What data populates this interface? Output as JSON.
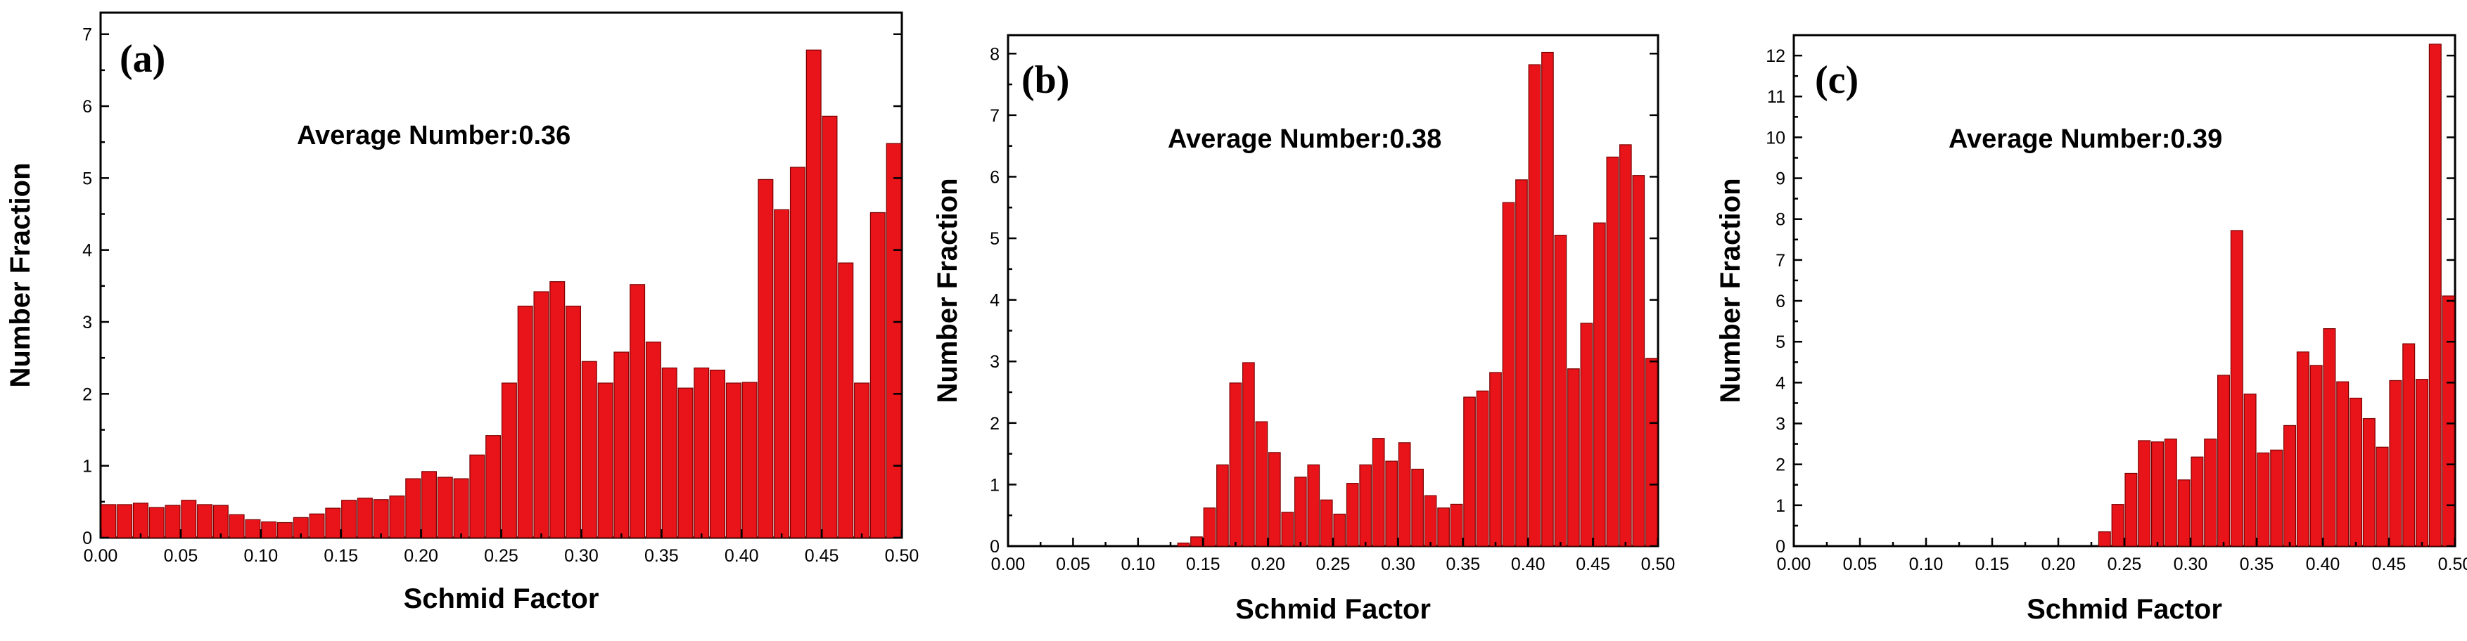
{
  "chart_data": [
    {
      "type": "bar",
      "panel_label": "(a)",
      "annotation": "Average Number:0.36",
      "xlabel": "Schmid Factor",
      "ylabel": "Number Fraction",
      "xlim": [
        0,
        0.5
      ],
      "ylim": [
        0,
        7.3
      ],
      "xticks": [
        "0.00",
        "0.05",
        "0.10",
        "0.15",
        "0.20",
        "0.25",
        "0.30",
        "0.35",
        "0.40",
        "0.45",
        "0.50"
      ],
      "yticks": [
        "0",
        "1",
        "2",
        "3",
        "4",
        "5",
        "6",
        "7"
      ],
      "bin_width": 0.01,
      "x": [
        0.0,
        0.01,
        0.02,
        0.03,
        0.04,
        0.05,
        0.06,
        0.07,
        0.08,
        0.09,
        0.1,
        0.11,
        0.12,
        0.13,
        0.14,
        0.15,
        0.16,
        0.17,
        0.18,
        0.19,
        0.2,
        0.21,
        0.22,
        0.23,
        0.24,
        0.25,
        0.26,
        0.27,
        0.28,
        0.29,
        0.3,
        0.31,
        0.32,
        0.33,
        0.34,
        0.35,
        0.36,
        0.37,
        0.38,
        0.39,
        0.4,
        0.41,
        0.42,
        0.43,
        0.44,
        0.45,
        0.46,
        0.47,
        0.48,
        0.49
      ],
      "values": [
        0.46,
        0.46,
        0.48,
        0.42,
        0.45,
        0.52,
        0.46,
        0.45,
        0.32,
        0.25,
        0.22,
        0.21,
        0.28,
        0.33,
        0.41,
        0.52,
        0.55,
        0.53,
        0.58,
        0.82,
        0.92,
        0.84,
        0.82,
        1.15,
        1.42,
        2.15,
        3.22,
        3.42,
        3.56,
        3.22,
        2.45,
        2.15,
        2.58,
        3.52,
        2.72,
        2.36,
        2.08,
        2.36,
        2.33,
        2.15,
        2.16,
        4.98,
        4.56,
        5.15,
        6.78,
        5.86,
        3.82,
        2.15,
        4.52,
        5.48
      ]
    },
    {
      "type": "bar",
      "panel_label": "(b)",
      "annotation": "Average Number:0.38",
      "xlabel": "Schmid Factor",
      "ylabel": "Number Fraction",
      "xlim": [
        0,
        0.5
      ],
      "ylim": [
        0,
        8.3
      ],
      "xticks": [
        "0.00",
        "0.05",
        "0.10",
        "0.15",
        "0.20",
        "0.25",
        "0.30",
        "0.35",
        "0.40",
        "0.45",
        "0.50"
      ],
      "yticks": [
        "0",
        "1",
        "2",
        "3",
        "4",
        "5",
        "6",
        "7",
        "8"
      ],
      "bin_width": 0.01,
      "x": [
        0.0,
        0.01,
        0.02,
        0.03,
        0.04,
        0.05,
        0.06,
        0.07,
        0.08,
        0.09,
        0.1,
        0.11,
        0.12,
        0.13,
        0.14,
        0.15,
        0.16,
        0.17,
        0.18,
        0.19,
        0.2,
        0.21,
        0.22,
        0.23,
        0.24,
        0.25,
        0.26,
        0.27,
        0.28,
        0.29,
        0.3,
        0.31,
        0.32,
        0.33,
        0.34,
        0.35,
        0.36,
        0.37,
        0.38,
        0.39,
        0.4,
        0.41,
        0.42,
        0.43,
        0.44,
        0.45,
        0.46,
        0.47,
        0.48,
        0.49
      ],
      "values": [
        0,
        0,
        0,
        0,
        0,
        0,
        0,
        0,
        0,
        0,
        0,
        0,
        0,
        0.05,
        0.15,
        0.62,
        1.32,
        2.65,
        2.98,
        2.02,
        1.52,
        0.55,
        1.12,
        1.32,
        0.75,
        0.52,
        1.02,
        1.32,
        1.75,
        1.38,
        1.68,
        1.25,
        0.82,
        0.62,
        0.68,
        2.42,
        2.52,
        2.82,
        5.58,
        5.95,
        7.82,
        8.02,
        5.05,
        2.88,
        3.62,
        5.25,
        6.32,
        6.52,
        6.02,
        3.05
      ]
    },
    {
      "type": "bar",
      "panel_label": "(c)",
      "annotation": "Average Number:0.39",
      "xlabel": "Schmid Factor",
      "ylabel": "Number Fraction",
      "xlim": [
        0,
        0.5
      ],
      "ylim": [
        0,
        12.5
      ],
      "xticks": [
        "0.00",
        "0.05",
        "0.10",
        "0.15",
        "0.20",
        "0.25",
        "0.30",
        "0.35",
        "0.40",
        "0.45",
        "0.50"
      ],
      "yticks": [
        "0",
        "1",
        "2",
        "3",
        "4",
        "5",
        "6",
        "7",
        "8",
        "9",
        "10",
        "11",
        "12"
      ],
      "bin_width": 0.01,
      "x": [
        0.0,
        0.01,
        0.02,
        0.03,
        0.04,
        0.05,
        0.06,
        0.07,
        0.08,
        0.09,
        0.1,
        0.11,
        0.12,
        0.13,
        0.14,
        0.15,
        0.16,
        0.17,
        0.18,
        0.19,
        0.2,
        0.21,
        0.22,
        0.23,
        0.24,
        0.25,
        0.26,
        0.27,
        0.28,
        0.29,
        0.3,
        0.31,
        0.32,
        0.33,
        0.34,
        0.35,
        0.36,
        0.37,
        0.38,
        0.39,
        0.4,
        0.41,
        0.42,
        0.43,
        0.44,
        0.45,
        0.46,
        0.47,
        0.48,
        0.49
      ],
      "values": [
        0,
        0,
        0,
        0,
        0,
        0,
        0,
        0,
        0,
        0,
        0,
        0,
        0,
        0,
        0,
        0,
        0,
        0,
        0,
        0,
        0,
        0,
        0,
        0.35,
        1.02,
        1.78,
        2.58,
        2.55,
        2.62,
        1.62,
        2.18,
        2.62,
        4.18,
        7.72,
        3.72,
        2.28,
        2.35,
        2.95,
        4.75,
        4.42,
        5.32,
        4.02,
        3.62,
        3.12,
        2.42,
        4.05,
        4.95,
        4.08,
        12.28,
        6.12
      ]
    }
  ]
}
